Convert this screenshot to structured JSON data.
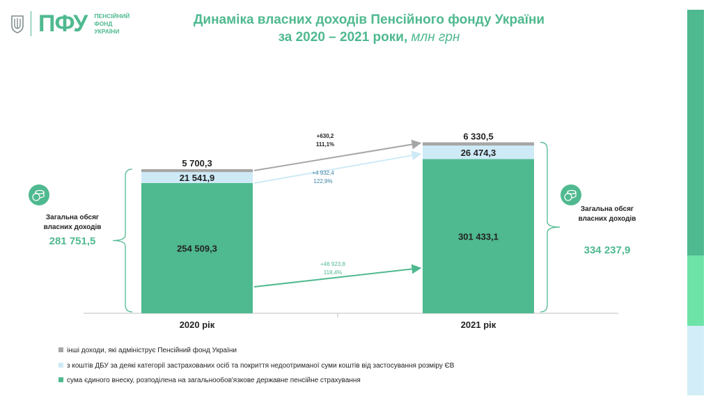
{
  "header": {
    "logo_abbr": "ПФУ",
    "logo_lines": [
      "ПЕНСІЙНИЙ",
      "ФОНД",
      "УКРАЇНИ"
    ],
    "title_line1": "Динаміка власних доходів Пенсійного фонду України",
    "title_line2": "за 2020 – 2021 роки,",
    "title_unit": "млн грн"
  },
  "colors": {
    "accent": "#4fb98f",
    "series_ev": "#4fb98f",
    "series_dbu": "#cdeaf6",
    "series_other": "#a6a6a6",
    "sidebar": [
      "#4fb98f",
      "#6ee3a8",
      "#d3edf8"
    ]
  },
  "chart_data": {
    "type": "bar",
    "stacked": true,
    "categories": [
      "2020 рік",
      "2021 рік"
    ],
    "series": [
      {
        "name": "сума єдиного внеску, розподілена на загальнообов'язкове державне пенсійне страхування",
        "values": [
          254509.3,
          301433.1
        ],
        "labels": [
          "254 509,3",
          "301 433,1"
        ]
      },
      {
        "name": "з коштів ДБУ за деякі категорії застрахованих осіб та покриття недоотриманої суми коштів від застосування розміру ЄВ",
        "values": [
          21541.9,
          26474.3
        ],
        "labels": [
          "21 541,9",
          "26 474,3"
        ]
      },
      {
        "name": "інші доходи, які адмініструє Пенсійний фонд України",
        "values": [
          5700.3,
          6330.5
        ],
        "labels": [
          "5 700,3",
          "6 330,5"
        ]
      }
    ],
    "changes": [
      {
        "series": "інші доходи, які адмініструє Пенсійний фонд України",
        "delta": "+630,2",
        "pct": "111,1%"
      },
      {
        "series": "з коштів ДБУ за деякі категорії застрахованих осіб та покриття недоотриманої суми коштів від застосування розміру ЄВ",
        "delta": "+4 932,4",
        "pct": "122,9%"
      },
      {
        "series": "сума єдиного внеску, розподілена на загальнообов'язкове державне пенсійне страхування",
        "delta": "+46 923,8",
        "pct": "118,4%"
      }
    ],
    "totals": [
      {
        "label": "Загальна обсяг власних доходів",
        "value": "281 751,5"
      },
      {
        "label": "Загальна обсяг власних доходів",
        "value": "334 237,9"
      }
    ],
    "legend_position": "bottom-left"
  }
}
